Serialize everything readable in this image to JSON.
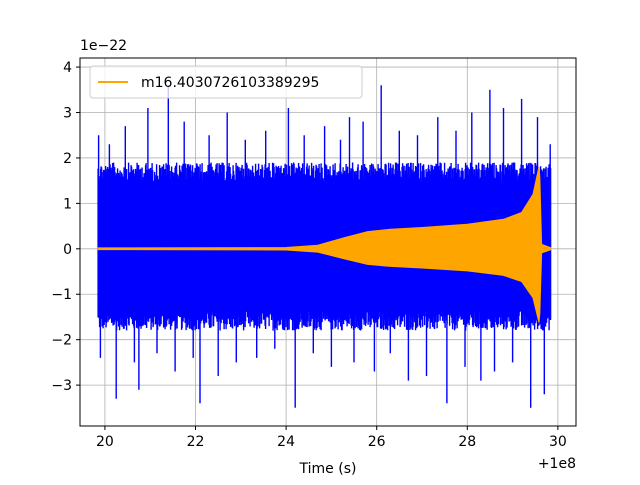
{
  "chart_data": {
    "type": "line",
    "xlabel": "Time (s)",
    "ylabel": "",
    "x_offset_label": "+1e8",
    "y_scale_label": "1e−22",
    "xlim": [
      19.45,
      30.4
    ],
    "ylim": [
      -3.9,
      4.2
    ],
    "x_ticks": [
      20,
      22,
      24,
      26,
      28,
      30
    ],
    "x_tick_labels": [
      "20",
      "22",
      "24",
      "26",
      "28",
      "30"
    ],
    "y_ticks": [
      -3,
      -2,
      -1,
      0,
      1,
      2,
      3,
      4
    ],
    "y_tick_labels": [
      "−3",
      "−2",
      "−1",
      "0",
      "1",
      "2",
      "3",
      "4"
    ],
    "grid": true,
    "legend_position": "upper-left",
    "series": [
      {
        "kind": "noise",
        "color": "#0000ff",
        "x_range": [
          19.85,
          29.85
        ],
        "envelope": {
          "typical_max": 1.9,
          "typical_min": -1.8
        },
        "spikes": [
          {
            "x": 19.86,
            "y": 2.5
          },
          {
            "x": 19.9,
            "y": -2.4
          },
          {
            "x": 20.1,
            "y": 2.3
          },
          {
            "x": 20.25,
            "y": -3.3
          },
          {
            "x": 20.45,
            "y": 2.7
          },
          {
            "x": 20.65,
            "y": -2.5
          },
          {
            "x": 20.75,
            "y": -3.1
          },
          {
            "x": 20.95,
            "y": 3.1
          },
          {
            "x": 21.15,
            "y": -2.3
          },
          {
            "x": 21.4,
            "y": 3.6
          },
          {
            "x": 21.55,
            "y": -2.7
          },
          {
            "x": 21.75,
            "y": 2.8
          },
          {
            "x": 21.95,
            "y": -2.4
          },
          {
            "x": 22.1,
            "y": -3.4
          },
          {
            "x": 22.3,
            "y": 2.5
          },
          {
            "x": 22.5,
            "y": -2.8
          },
          {
            "x": 22.7,
            "y": 3.0
          },
          {
            "x": 22.9,
            "y": -2.5
          },
          {
            "x": 23.1,
            "y": 2.4
          },
          {
            "x": 23.35,
            "y": -2.4
          },
          {
            "x": 23.55,
            "y": 2.6
          },
          {
            "x": 23.75,
            "y": -2.2
          },
          {
            "x": 24.05,
            "y": 3.1
          },
          {
            "x": 24.2,
            "y": -3.5
          },
          {
            "x": 24.4,
            "y": 2.5
          },
          {
            "x": 24.6,
            "y": -2.3
          },
          {
            "x": 24.85,
            "y": 2.7
          },
          {
            "x": 25.0,
            "y": -2.6
          },
          {
            "x": 25.2,
            "y": 2.4
          },
          {
            "x": 25.4,
            "y": 2.9
          },
          {
            "x": 25.5,
            "y": -2.5
          },
          {
            "x": 25.7,
            "y": 2.8
          },
          {
            "x": 25.95,
            "y": -2.7
          },
          {
            "x": 26.1,
            "y": 3.6
          },
          {
            "x": 26.3,
            "y": -2.3
          },
          {
            "x": 26.5,
            "y": 2.6
          },
          {
            "x": 26.7,
            "y": -2.9
          },
          {
            "x": 26.9,
            "y": 2.5
          },
          {
            "x": 27.1,
            "y": -2.8
          },
          {
            "x": 27.35,
            "y": 2.9
          },
          {
            "x": 27.55,
            "y": -3.4
          },
          {
            "x": 27.75,
            "y": 2.6
          },
          {
            "x": 27.95,
            "y": -2.6
          },
          {
            "x": 28.1,
            "y": 3.0
          },
          {
            "x": 28.3,
            "y": -2.9
          },
          {
            "x": 28.5,
            "y": 3.5
          },
          {
            "x": 28.6,
            "y": -2.7
          },
          {
            "x": 28.8,
            "y": 3.1
          },
          {
            "x": 29.0,
            "y": -2.5
          },
          {
            "x": 29.2,
            "y": 3.3
          },
          {
            "x": 29.4,
            "y": -3.5
          },
          {
            "x": 29.55,
            "y": 2.9
          },
          {
            "x": 29.7,
            "y": -3.2
          },
          {
            "x": 29.83,
            "y": 2.3
          }
        ]
      },
      {
        "name": "m16.4030726103389295",
        "kind": "chirp",
        "color": "#ffa500",
        "x_range": [
          19.85,
          29.85
        ],
        "envelope": [
          {
            "x": 19.85,
            "y": 0.02
          },
          {
            "x": 24.0,
            "y": 0.03
          },
          {
            "x": 24.7,
            "y": 0.08
          },
          {
            "x": 25.3,
            "y": 0.25
          },
          {
            "x": 25.8,
            "y": 0.38
          },
          {
            "x": 26.3,
            "y": 0.43
          },
          {
            "x": 27.0,
            "y": 0.47
          },
          {
            "x": 28.0,
            "y": 0.54
          },
          {
            "x": 28.8,
            "y": 0.65
          },
          {
            "x": 29.2,
            "y": 0.8
          },
          {
            "x": 29.45,
            "y": 1.2
          },
          {
            "x": 29.58,
            "y": 1.8
          },
          {
            "x": 29.6,
            "y": 1.6
          },
          {
            "x": 29.64,
            "y": 0.1
          },
          {
            "x": 29.85,
            "y": 0.02
          }
        ]
      }
    ]
  }
}
